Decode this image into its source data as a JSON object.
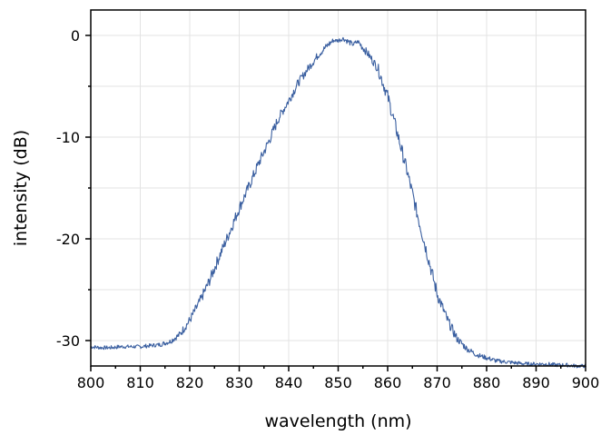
{
  "chart_data": {
    "type": "line",
    "title": "",
    "xlabel": "wavelength (nm)",
    "ylabel": "intensity (dB)",
    "xlim": [
      800,
      900
    ],
    "ylim": [
      -32.5,
      2.5
    ],
    "xticks": [
      800,
      810,
      820,
      830,
      840,
      850,
      860,
      870,
      880,
      890,
      900
    ],
    "xtick_labels": [
      "800",
      "810",
      "820",
      "830",
      "840",
      "850",
      "860",
      "870",
      "880",
      "890",
      "900"
    ],
    "yticks": [
      0,
      -10,
      -20,
      -30
    ],
    "ytick_labels": [
      "0",
      "-10",
      "-20",
      "-30"
    ],
    "grid": true,
    "line_color": "#3a5fa0",
    "series": [
      {
        "x": [
          800,
          802,
          804,
          806,
          808,
          810,
          812,
          814,
          816,
          818,
          820,
          822,
          824,
          826,
          828,
          830,
          832,
          834,
          836,
          838,
          840,
          842,
          844,
          846,
          848,
          849,
          850,
          851,
          852,
          853,
          854,
          855,
          856,
          858,
          860,
          862,
          864,
          866,
          868,
          870,
          872,
          874,
          876,
          878,
          880,
          882,
          884,
          886,
          888,
          890,
          892,
          894,
          896,
          898,
          900
        ],
        "y": [
          -30.6,
          -30.7,
          -30.7,
          -30.6,
          -30.6,
          -30.6,
          -30.5,
          -30.4,
          -30.1,
          -29.4,
          -28.0,
          -26.2,
          -24.1,
          -21.7,
          -19.4,
          -17.0,
          -14.8,
          -12.5,
          -10.4,
          -8.1,
          -6.4,
          -4.6,
          -3.2,
          -1.9,
          -0.9,
          -0.5,
          -0.5,
          -0.3,
          -0.6,
          -0.9,
          -0.6,
          -1.2,
          -1.8,
          -3.2,
          -6.0,
          -9.7,
          -13.5,
          -17.6,
          -21.5,
          -25.4,
          -27.9,
          -29.8,
          -30.8,
          -31.4,
          -31.7,
          -32.0,
          -32.1,
          -32.2,
          -32.3,
          -32.3,
          -32.3,
          -32.4,
          -32.4,
          -32.5,
          -32.5
        ]
      }
    ]
  }
}
